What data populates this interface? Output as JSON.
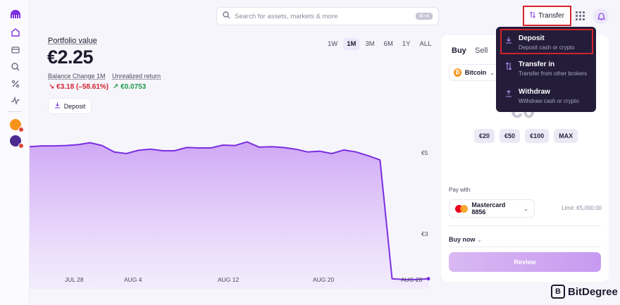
{
  "search": {
    "placeholder": "Search for assets, markets & more",
    "shortcut": "⌘+K"
  },
  "header": {
    "transfer_label": "Transfer"
  },
  "portfolio": {
    "label": "Portfolio value",
    "value": "€2.25",
    "balance_change_label": "Balance Change 1M",
    "balance_change_value": "↘ €3.18 (–58.61%)",
    "unrealized_label": "Unrealized return",
    "unrealized_value": "↗ €0.0753",
    "deposit_label": "Deposit"
  },
  "ranges": [
    "1W",
    "1M",
    "3M",
    "6M",
    "1Y",
    "ALL"
  ],
  "active_range": "1M",
  "chart_data": {
    "type": "area",
    "x_tick_labels": [
      "JUL 28",
      "AUG 4",
      "AUG 12",
      "AUG 20",
      "AUG 28"
    ],
    "y_tick_labels": [
      "€5",
      "€3"
    ],
    "values": [
      5.53,
      5.55,
      5.55,
      5.56,
      5.58,
      5.63,
      5.56,
      5.4,
      5.36,
      5.44,
      5.47,
      5.43,
      5.43,
      5.51,
      5.5,
      5.5,
      5.57,
      5.56,
      5.65,
      5.52,
      5.53,
      5.51,
      5.47,
      5.4,
      5.42,
      5.36,
      5.45,
      5.4,
      5.31,
      5.2,
      2.25,
      2.23,
      2.23,
      2.25
    ],
    "ylim": [
      2.0,
      6.2
    ],
    "color": "#7a2fe0",
    "grid": false
  },
  "trade": {
    "tab_buy": "Buy",
    "tab_sell": "Sell",
    "asset": "Bitcoin",
    "amount": "€0",
    "quick_amounts": [
      "€20",
      "€50",
      "€100",
      "MAX"
    ],
    "pay_with_label": "Pay with",
    "card": "Mastercard 8856",
    "limit": "Limit: €5,000.00",
    "order_type": "Buy now",
    "review_label": "Review"
  },
  "transfer_menu": [
    {
      "title": "Deposit",
      "subtitle": "Deposit cash or crypto"
    },
    {
      "title": "Transfer in",
      "subtitle": "Transfer from other brokers"
    },
    {
      "title": "Withdraw",
      "subtitle": "Withdraw cash or crypto"
    }
  ],
  "watermark": "BitDegree",
  "colors": {
    "accent": "#7a2fe0",
    "negative": "#d3232d",
    "positive": "#1a9a4a",
    "highlight": "#d3232d",
    "menu_bg": "#231d39"
  }
}
